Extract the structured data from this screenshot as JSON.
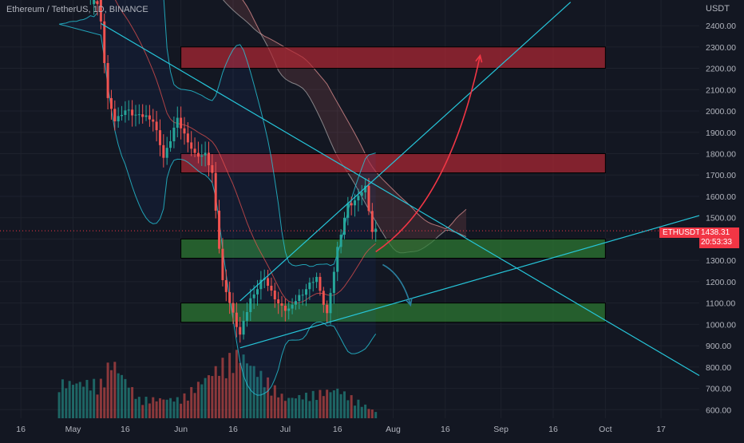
{
  "header": {
    "title": "Ethereum / TetherUS, 1D, BINANCE",
    "unit": "USDT"
  },
  "last_price": {
    "symbol": "ETHUSDT",
    "value": "1438.31",
    "countdown": "20:53:33"
  },
  "colors": {
    "background": "#131722",
    "grid": "#1e222d",
    "up": "#26a69a",
    "down": "#ef5350",
    "resistance_zone": "#b22833",
    "support_zone": "#2e7d32",
    "trendline": "#26c6da"
  },
  "chart_data": {
    "type": "candlestick",
    "title": "Ethereum / TetherUS, 1D, BINANCE",
    "ylabel": "USDT",
    "ylim": [
      560,
      2520
    ],
    "y_ticks": [
      600,
      700,
      800,
      900,
      1000,
      1100,
      1200,
      1300,
      1400,
      1500,
      1600,
      1700,
      1800,
      1900,
      2000,
      2100,
      2200,
      2300,
      2400
    ],
    "y_tick_labels": [
      "600.00",
      "700.00",
      "800.00",
      "900.00",
      "1000.00",
      "1100.00",
      "1200.00",
      "1300.00",
      "1400.00",
      "1500.00",
      "1600.00",
      "1700.00",
      "1800.00",
      "1900.00",
      "2000.00",
      "2100.00",
      "2200.00",
      "2300.00",
      "2400.00"
    ],
    "x_ticks": [
      "2022-04-16",
      "2022-05-01",
      "2022-05-16",
      "2022-06-01",
      "2022-06-16",
      "2022-07-01",
      "2022-07-16",
      "2022-08-01",
      "2022-08-16",
      "2022-09-01",
      "2022-09-16",
      "2022-10-01",
      "2022-10-17"
    ],
    "x_tick_labels": [
      "16",
      "May",
      "16",
      "Jun",
      "16",
      "Jul",
      "16",
      "Aug",
      "16",
      "Sep",
      "16",
      "Oct",
      "17"
    ],
    "x_range": [
      "2022-04-10",
      "2022-10-28"
    ],
    "grid": true,
    "price_key_points": [
      {
        "date": "2022-05-09",
        "price": 2420
      },
      {
        "date": "2022-05-11",
        "price": 2050
      },
      {
        "date": "2022-05-13",
        "price": 1960
      },
      {
        "date": "2022-05-16",
        "price": 2000
      },
      {
        "date": "2022-05-20",
        "price": 1980
      },
      {
        "date": "2022-05-24",
        "price": 1960
      },
      {
        "date": "2022-05-27",
        "price": 1780
      },
      {
        "date": "2022-05-31",
        "price": 1960
      },
      {
        "date": "2022-06-05",
        "price": 1790
      },
      {
        "date": "2022-06-08",
        "price": 1800
      },
      {
        "date": "2022-06-10",
        "price": 1700
      },
      {
        "date": "2022-06-13",
        "price": 1200
      },
      {
        "date": "2022-06-16",
        "price": 1050
      },
      {
        "date": "2022-06-18",
        "price": 950
      },
      {
        "date": "2022-06-21",
        "price": 1120
      },
      {
        "date": "2022-06-25",
        "price": 1220
      },
      {
        "date": "2022-06-29",
        "price": 1090
      },
      {
        "date": "2022-07-02",
        "price": 1070
      },
      {
        "date": "2022-07-06",
        "price": 1150
      },
      {
        "date": "2022-07-10",
        "price": 1220
      },
      {
        "date": "2022-07-13",
        "price": 1040
      },
      {
        "date": "2022-07-16",
        "price": 1360
      },
      {
        "date": "2022-07-19",
        "price": 1560
      },
      {
        "date": "2022-07-21",
        "price": 1580
      },
      {
        "date": "2022-07-24",
        "price": 1640
      },
      {
        "date": "2022-07-26",
        "price": 1440
      },
      {
        "date": "2022-07-27",
        "price": 1438.31
      }
    ],
    "volume_profile": [
      {
        "date": "2022-05-09",
        "rel": 0.55
      },
      {
        "date": "2022-05-12",
        "rel": 0.9
      },
      {
        "date": "2022-05-20",
        "rel": 0.3
      },
      {
        "date": "2022-06-01",
        "rel": 0.3
      },
      {
        "date": "2022-06-13",
        "rel": 0.85
      },
      {
        "date": "2022-06-18",
        "rel": 1.0
      },
      {
        "date": "2022-07-01",
        "rel": 0.3
      },
      {
        "date": "2022-07-16",
        "rel": 0.45
      },
      {
        "date": "2022-07-27",
        "rel": 0.1
      }
    ],
    "zones": [
      {
        "kind": "resistance",
        "from": 2200,
        "to": 2300,
        "start": "2022-06-01",
        "end": "2022-10-01"
      },
      {
        "kind": "resistance",
        "from": 1710,
        "to": 1800,
        "start": "2022-06-01",
        "end": "2022-10-01"
      },
      {
        "kind": "support",
        "from": 1310,
        "to": 1400,
        "start": "2022-06-01",
        "end": "2022-10-01"
      },
      {
        "kind": "support",
        "from": 1010,
        "to": 1100,
        "start": "2022-06-01",
        "end": "2022-10-01"
      }
    ],
    "trendlines": [
      {
        "name": "descending-resistance",
        "from": {
          "date": "2022-05-09",
          "price": 2410
        },
        "to": {
          "date": "2022-10-28",
          "price": 760
        }
      },
      {
        "name": "ascending-support",
        "from": {
          "date": "2022-06-18",
          "price": 890
        },
        "to": {
          "date": "2022-10-28",
          "price": 1510
        }
      },
      {
        "name": "channel-upper",
        "from": {
          "date": "2022-06-18",
          "price": 1110
        },
        "to": {
          "date": "2022-09-21",
          "price": 2510
        }
      }
    ],
    "projection_arrows": [
      {
        "name": "bullish-projection",
        "from": {
          "date": "2022-07-27",
          "price": 1340
        },
        "to": {
          "date": "2022-08-26",
          "price": 2260
        }
      },
      {
        "name": "bearish-projection",
        "from": {
          "date": "2022-07-29",
          "price": 1280
        },
        "to": {
          "date": "2022-08-06",
          "price": 1090
        }
      }
    ]
  }
}
